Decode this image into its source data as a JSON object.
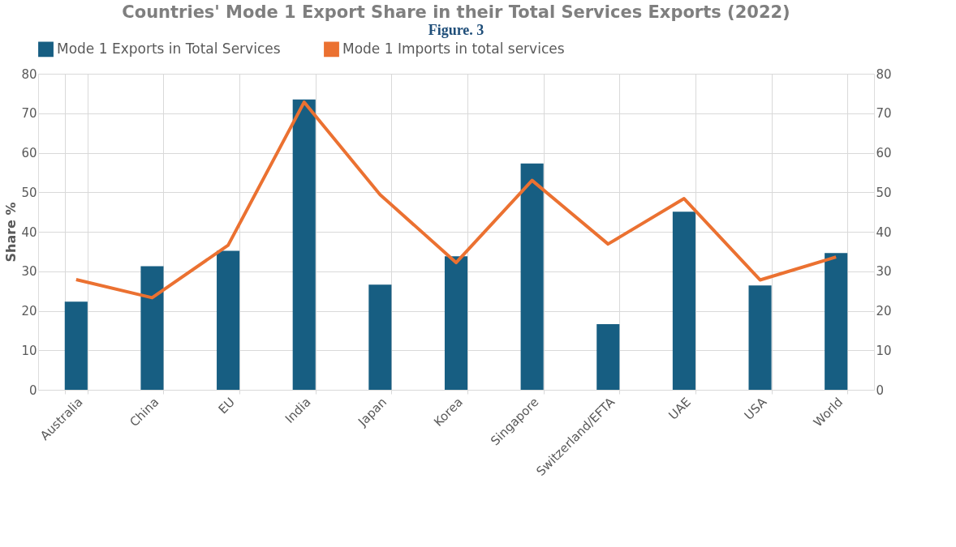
{
  "chart_data": {
    "type": "bar",
    "title": "Countries' Mode 1 Export Share in their Total Services Exports (2022)",
    "ylabel": "Share %",
    "annotations": [
      "Figure. 3"
    ],
    "categories": [
      "Australia",
      "China",
      "EU",
      "India",
      "Japan",
      "Korea",
      "Singapore",
      "Switzerland/EFTA",
      "UAE",
      "USA",
      "World"
    ],
    "series": [
      {
        "name": "Mode 1 Exports in Total Services",
        "color": "#175e82",
        "values": [
          22.3,
          31.3,
          35.2,
          73.5,
          26.6,
          33.8,
          57.3,
          16.6,
          45.1,
          26.4,
          34.6
        ]
      },
      {
        "name": "Mode 1 Imports in total services",
        "type": "line",
        "axis": "y2",
        "color": "#eb7131",
        "values": [
          27.9,
          23.3,
          36.6,
          72.8,
          49.4,
          32.2,
          53.0,
          36.9,
          48.4,
          27.8,
          33.6
        ]
      }
    ],
    "ylim": [
      0,
      80
    ],
    "yticks": [
      0,
      10,
      20,
      30,
      40,
      50,
      60,
      70,
      80
    ],
    "y2lim": [
      0,
      80
    ],
    "y2ticks": [
      0,
      10,
      20,
      30,
      40,
      50,
      60,
      70,
      80
    ],
    "grid": true,
    "legend": "top",
    "line_style": "solid"
  }
}
